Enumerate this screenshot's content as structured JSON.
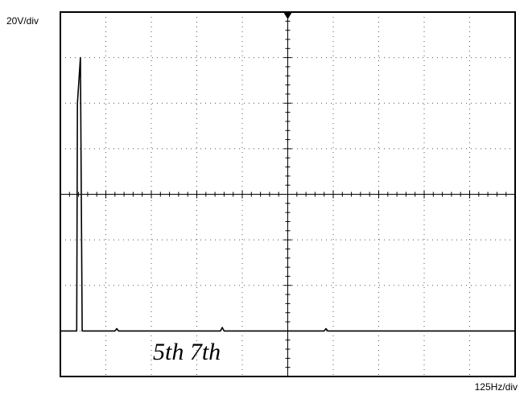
{
  "chart_data": {
    "type": "line",
    "title": "",
    "y_scale_label": "20V/div",
    "x_scale_label": "125Hz/div",
    "x_divisions": 10,
    "y_divisions": 8,
    "x_unit": "Hz",
    "y_unit": "V",
    "xlim": [
      0,
      1250
    ],
    "ylim": [
      0,
      160
    ],
    "baseline_division": 1,
    "grid": true,
    "annotation": "5th 7th",
    "series": [
      {
        "points": [
          [
            0,
            20
          ],
          [
            45,
            20
          ],
          [
            47,
            120
          ],
          [
            55,
            140
          ],
          [
            60,
            20
          ],
          [
            150,
            20
          ],
          [
            155,
            21
          ],
          [
            160,
            20
          ],
          [
            250,
            20
          ],
          [
            440,
            20
          ],
          [
            445,
            21.5
          ],
          [
            450,
            20
          ],
          [
            725,
            20
          ],
          [
            730,
            21
          ],
          [
            735,
            20
          ],
          [
            1250,
            20
          ]
        ]
      }
    ]
  }
}
